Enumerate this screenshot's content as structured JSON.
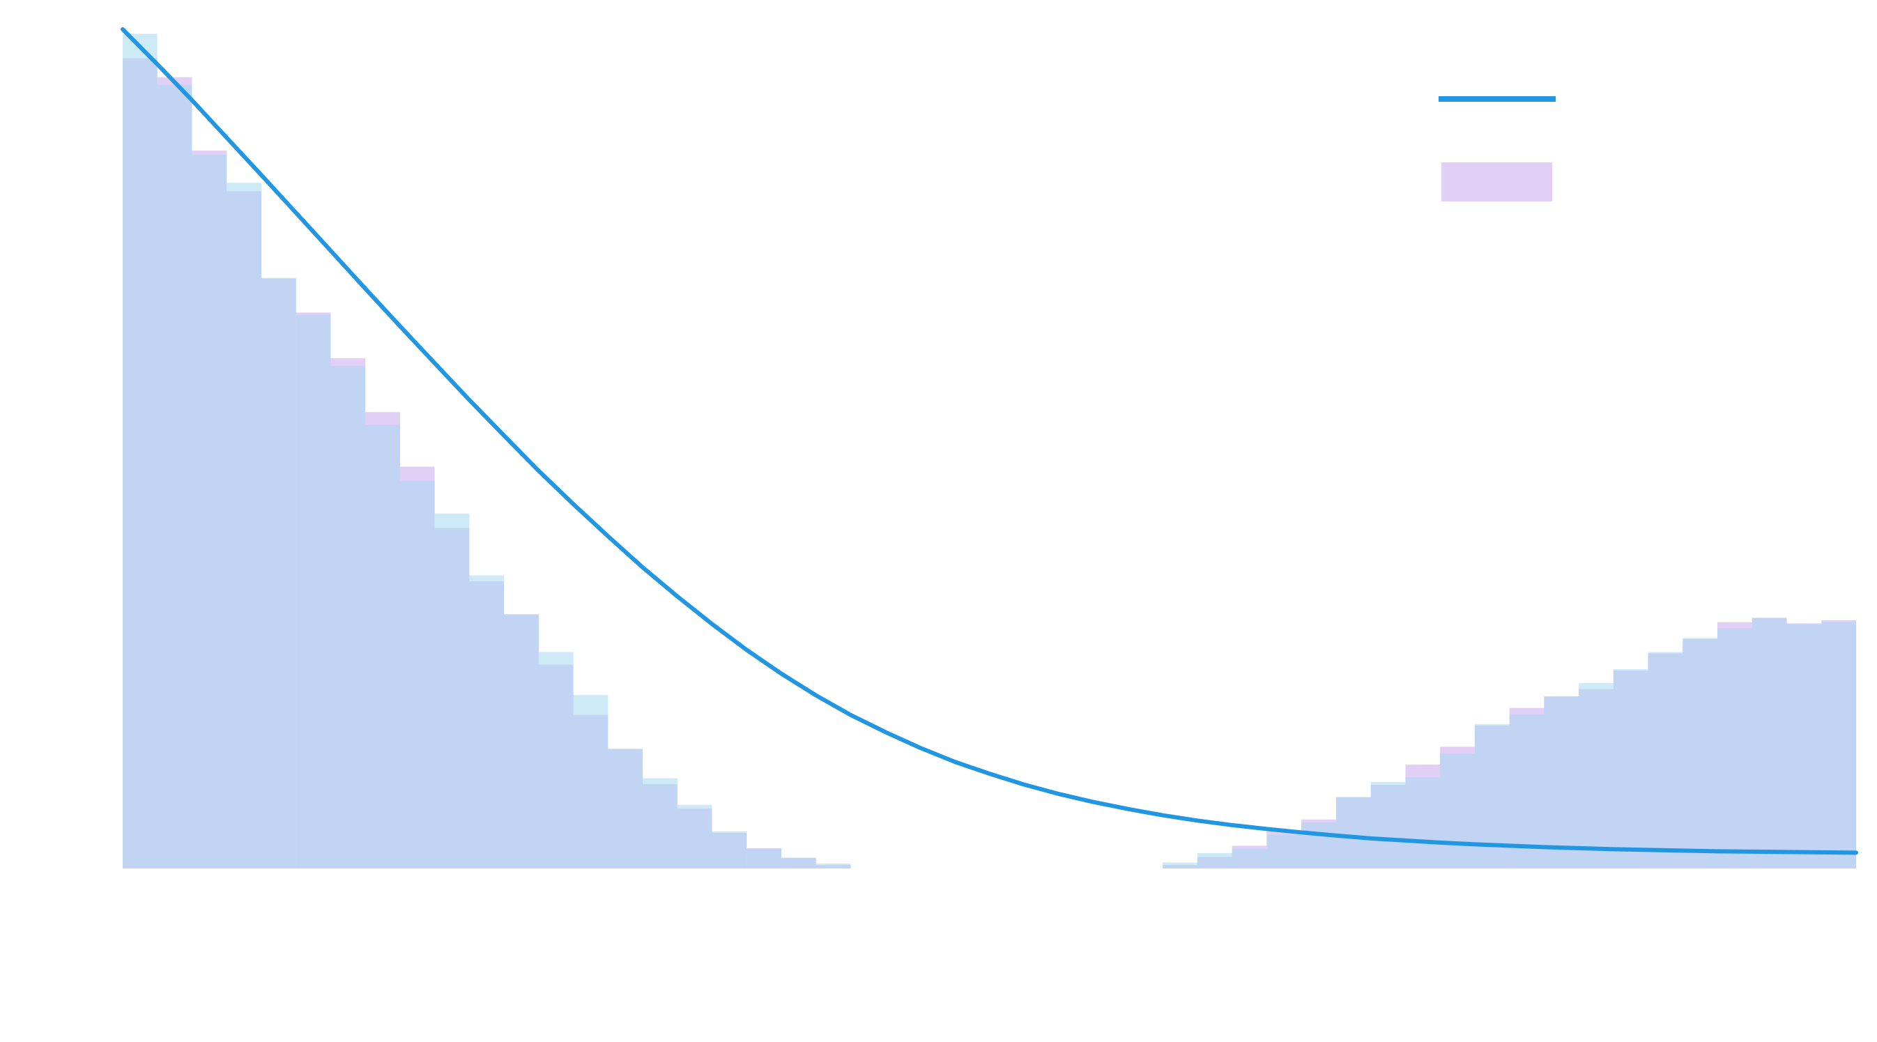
{
  "chart_data": {
    "type": "bar",
    "xlim": [
      0,
      50
    ],
    "ylim": [
      0,
      24
    ],
    "grid": false,
    "legend_position": "top-right",
    "bin_edges": [
      0,
      1,
      2,
      3,
      4,
      5,
      6,
      7,
      8,
      9,
      10,
      11,
      12,
      13,
      14,
      15,
      16,
      17,
      18,
      19,
      20,
      21,
      22,
      23,
      24,
      25,
      26,
      27,
      28,
      29,
      30,
      31,
      32,
      33,
      34,
      35,
      36,
      37,
      38,
      39,
      40,
      41,
      42,
      43,
      44,
      45,
      46,
      47,
      48,
      49,
      50
    ],
    "series": [
      {
        "kind": "line",
        "color": "#2196e3",
        "x": [
          0,
          1,
          2,
          3,
          4,
          5,
          6,
          7,
          8,
          9,
          10,
          11,
          12,
          13,
          14,
          15,
          16,
          17,
          18,
          19,
          20,
          21,
          22,
          23,
          24,
          25,
          26,
          27,
          28,
          29,
          30,
          31,
          32,
          33,
          34,
          35,
          36,
          37,
          38,
          39,
          40,
          41,
          42,
          43,
          44,
          45,
          46,
          47,
          48,
          49,
          50
        ],
        "values": [
          24.0,
          23.0,
          21.97,
          20.9,
          19.83,
          18.75,
          17.67,
          16.58,
          15.51,
          14.45,
          13.4,
          12.38,
          11.37,
          10.42,
          9.5,
          8.61,
          7.78,
          6.99,
          6.25,
          5.57,
          4.95,
          4.39,
          3.9,
          3.45,
          3.05,
          2.71,
          2.4,
          2.13,
          1.9,
          1.7,
          1.52,
          1.37,
          1.24,
          1.13,
          1.03,
          0.94,
          0.86,
          0.8,
          0.74,
          0.69,
          0.65,
          0.61,
          0.58,
          0.55,
          0.53,
          0.51,
          0.49,
          0.48,
          0.47,
          0.46,
          0.45
        ]
      },
      {
        "kind": "histogram",
        "color": "#c8a8ee",
        "opacity": 0.55,
        "values": [
          23.17,
          22.63,
          20.53,
          19.37,
          16.87,
          15.9,
          14.59,
          13.05,
          11.49,
          9.74,
          8.21,
          7.27,
          5.83,
          4.39,
          3.42,
          2.41,
          1.71,
          1.02,
          0.58,
          0.3,
          0.1,
          0.0,
          0.0,
          0.0,
          0.0,
          0.0,
          0.0,
          0.0,
          0.0,
          0.0,
          0.1,
          0.33,
          0.65,
          1.07,
          1.4,
          2.04,
          2.39,
          2.97,
          3.48,
          4.09,
          4.59,
          4.92,
          5.13,
          5.66,
          6.15,
          6.56,
          7.04,
          7.17,
          7.01,
          7.1
        ]
      },
      {
        "kind": "histogram",
        "color": "#a8d8f0",
        "opacity": 0.55,
        "values": [
          23.87,
          22.41,
          20.41,
          19.61,
          16.89,
          15.84,
          14.37,
          12.69,
          11.09,
          10.15,
          8.38,
          7.26,
          6.19,
          4.96,
          3.42,
          2.58,
          1.82,
          1.06,
          0.55,
          0.31,
          0.14,
          0.0,
          0.0,
          0.0,
          0.0,
          0.0,
          0.0,
          0.0,
          0.0,
          0.0,
          0.17,
          0.44,
          0.56,
          0.96,
          1.31,
          2.04,
          2.47,
          2.6,
          3.28,
          4.13,
          4.41,
          4.92,
          5.3,
          5.7,
          6.19,
          6.59,
          6.87,
          7.16,
          6.98,
          7.05
        ]
      }
    ]
  }
}
